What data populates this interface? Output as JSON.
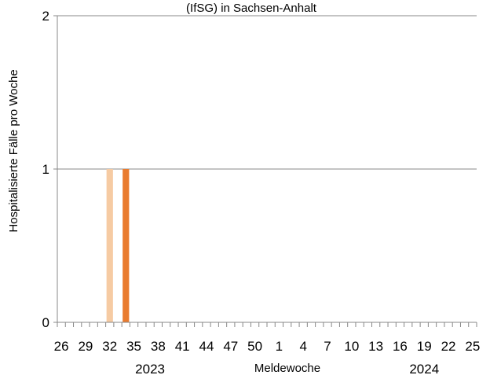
{
  "chart_data": {
    "type": "bar",
    "title": "(IfSG) in Sachsen-Anhalt",
    "ylabel": "Hospitalisierte  Fälle pro Woche",
    "xlabel": "Meldewoche",
    "ylim": [
      0,
      2
    ],
    "yticks": [
      0,
      1,
      2
    ],
    "grid": true,
    "weeks": [
      26,
      27,
      28,
      29,
      30,
      31,
      32,
      33,
      34,
      35,
      36,
      37,
      38,
      39,
      40,
      41,
      42,
      43,
      44,
      45,
      46,
      47,
      48,
      49,
      50,
      51,
      52,
      1,
      2,
      3,
      4,
      5,
      6,
      7,
      8,
      9,
      10,
      11,
      12,
      13,
      14,
      15,
      16,
      17,
      18,
      19,
      20,
      21,
      22,
      23,
      24,
      25
    ],
    "tick_labels": [
      "26",
      "29",
      "32",
      "35",
      "38",
      "41",
      "44",
      "47",
      "50",
      "1",
      "4",
      "7",
      "10",
      "13",
      "16",
      "19",
      "22",
      "25"
    ],
    "year_labels": [
      {
        "text": "2023",
        "week": 37
      },
      {
        "text": "2024",
        "week": 19
      }
    ],
    "series": [
      {
        "color": "#f6cba3",
        "values": [
          0,
          0,
          0,
          0,
          0,
          0,
          1,
          0,
          0,
          0,
          0,
          0,
          0,
          0,
          0,
          0,
          0,
          0,
          0,
          0,
          0,
          0,
          0,
          0,
          0,
          0,
          0,
          0,
          0,
          0,
          0,
          0,
          0,
          0,
          0,
          0,
          0,
          0,
          0,
          0,
          0,
          0,
          0,
          0,
          0,
          0,
          0,
          0,
          0,
          0,
          0,
          0
        ]
      },
      {
        "color": "#e97b2f",
        "values": [
          0,
          0,
          0,
          0,
          0,
          0,
          0,
          0,
          1,
          0,
          0,
          0,
          0,
          0,
          0,
          0,
          0,
          0,
          0,
          0,
          0,
          0,
          0,
          0,
          0,
          0,
          0,
          0,
          0,
          0,
          0,
          0,
          0,
          0,
          0,
          0,
          0,
          0,
          0,
          0,
          0,
          0,
          0,
          0,
          0,
          0,
          0,
          0,
          0,
          0,
          0,
          0
        ]
      }
    ]
  }
}
